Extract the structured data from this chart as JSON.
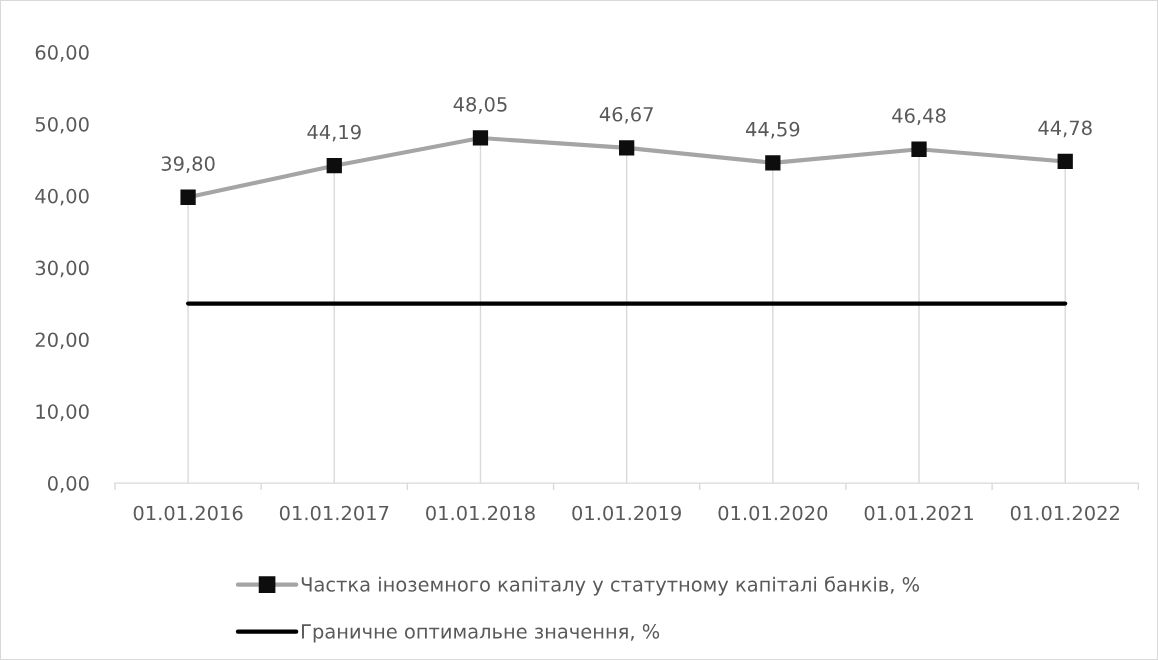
{
  "chart_data": {
    "type": "line",
    "categories": [
      "01.01.2016",
      "01.01.2017",
      "01.01.2018",
      "01.01.2019",
      "01.01.2020",
      "01.01.2021",
      "01.01.2022"
    ],
    "series": [
      {
        "name": "Частка іноземного капіталу у статутному капіталі банків, %",
        "color": "#a5a5a5",
        "colors": [
          "#0d0d0d",
          "#0d0d0d",
          "#0d0d0d",
          "#0d0d0d",
          "#0d0d0d",
          "#0d0d0d",
          "#0d0d0d"
        ],
        "marker": "square",
        "values": [
          39.8,
          44.19,
          48.05,
          46.67,
          44.59,
          46.48,
          44.78
        ],
        "value_labels": [
          "39,80",
          "44,19",
          "48,05",
          "46,67",
          "44,59",
          "46,48",
          "44,78"
        ]
      },
      {
        "name": "Граничне оптимальне значення, %",
        "color": "#000000",
        "values": [
          25,
          25,
          25,
          25,
          25,
          25,
          25
        ]
      }
    ],
    "ylim": [
      0,
      60
    ],
    "yticks": [
      {
        "value": 0,
        "label": "0,00"
      },
      {
        "value": 10,
        "label": "10,00"
      },
      {
        "value": 20,
        "label": "20,00"
      },
      {
        "value": 30,
        "label": "30,00"
      },
      {
        "value": 40,
        "label": "40,00"
      },
      {
        "value": 50,
        "label": "50,00"
      },
      {
        "value": 60,
        "label": "60,00"
      }
    ],
    "grid": "x",
    "legend": "bottom"
  }
}
